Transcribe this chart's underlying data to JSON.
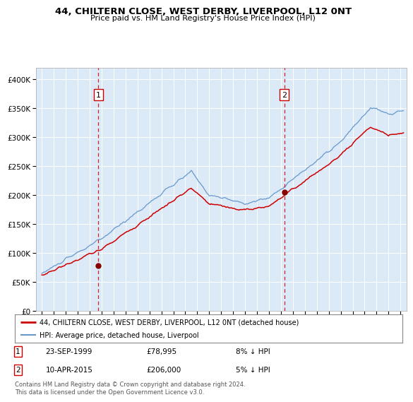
{
  "title": "44, CHILTERN CLOSE, WEST DERBY, LIVERPOOL, L12 0NT",
  "subtitle": "Price paid vs. HM Land Registry's House Price Index (HPI)",
  "background_color": "#dce9f7",
  "fig_bg_color": "#ffffff",
  "red_line_color": "#cc0000",
  "blue_line_color": "#6699cc",
  "marker_color": "#880000",
  "vline_color": "#cc0000",
  "sale1_date_num": 1999.73,
  "sale1_price": 78995,
  "sale1_label": "23-SEP-1999",
  "sale1_text": "£78,995",
  "sale1_hpi_text": "8% ↓ HPI",
  "sale2_date_num": 2015.27,
  "sale2_price": 206000,
  "sale2_label": "10-APR-2015",
  "sale2_text": "£206,000",
  "sale2_hpi_text": "5% ↓ HPI",
  "legend_red": "44, CHILTERN CLOSE, WEST DERBY, LIVERPOOL, L12 0NT (detached house)",
  "legend_blue": "HPI: Average price, detached house, Liverpool",
  "footer": "Contains HM Land Registry data © Crown copyright and database right 2024.\nThis data is licensed under the Open Government Licence v3.0.",
  "ylim": [
    0,
    420000
  ],
  "xlim_start": 1994.5,
  "xlim_end": 2025.5
}
